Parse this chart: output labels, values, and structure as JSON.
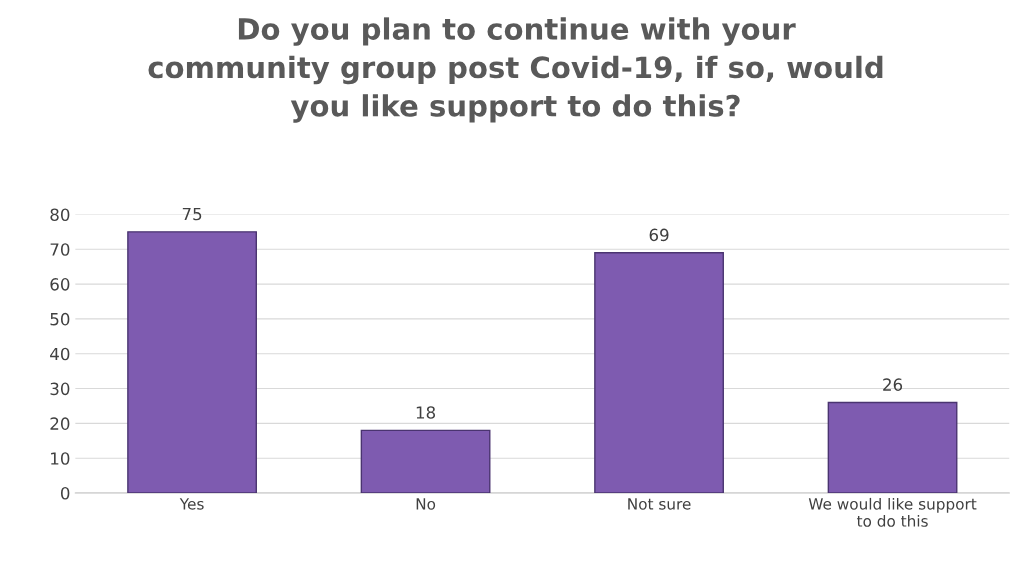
{
  "chart_data": {
    "type": "bar",
    "title": "Do you plan to continue with your\ncommunity group post Covid-19, if so, would\nyou like support to do this?",
    "categories": [
      "Yes",
      "No",
      "Not sure",
      "We would like support\nto do this"
    ],
    "values": [
      75,
      18,
      69,
      26
    ],
    "color": "#7e5bb0",
    "ylim": [
      0,
      80
    ],
    "yticks": [
      0,
      10,
      20,
      30,
      40,
      50,
      60,
      70,
      80
    ],
    "grid": "y",
    "data_labels": true
  }
}
